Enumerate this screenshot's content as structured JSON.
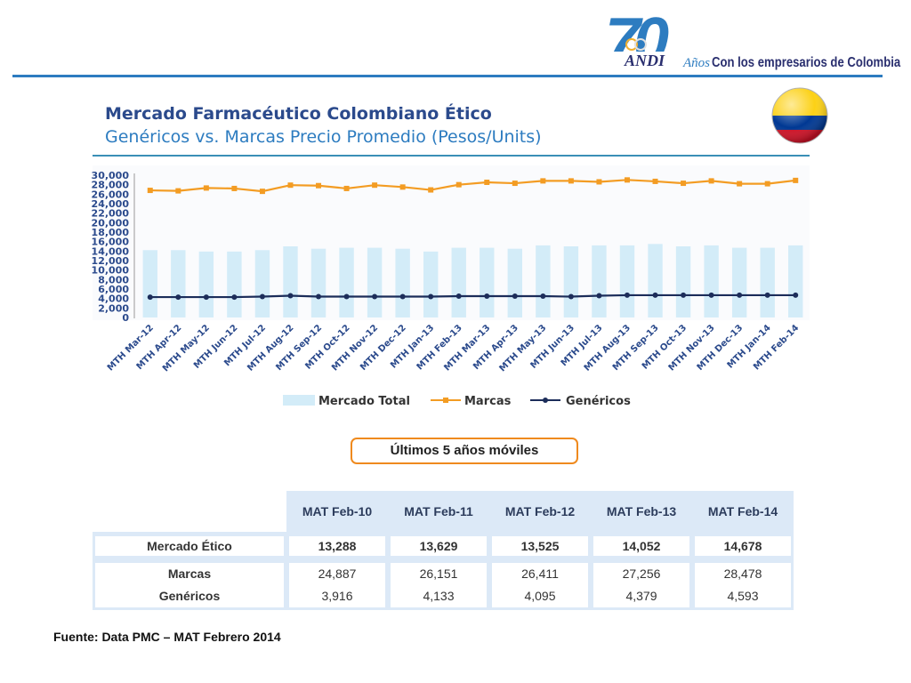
{
  "header": {
    "logo_number": "70",
    "logo_name": "ANDI",
    "anos": "Años",
    "tagline": "Con los empresarios de Colombia"
  },
  "title": "Mercado Farmacéutico Colombiano Ético",
  "subtitle": "Genéricos vs. Marcas Precio Promedio (Pesos/Units)",
  "chart_data": {
    "type": "bar",
    "categories": [
      "MTH Mar-12",
      "MTH Apr-12",
      "MTH May-12",
      "MTH Jun-12",
      "MTH Jul-12",
      "MTH Aug-12",
      "MTH Sep-12",
      "MTH Oct-12",
      "MTH Nov-12",
      "MTH Dec-12",
      "MTH Jan-13",
      "MTH Feb-13",
      "MTH Mar-13",
      "MTH Apr-13",
      "MTH May-13",
      "MTH Jun-13",
      "MTH Jul-13",
      "MTH Aug-13",
      "MTH Sep-13",
      "MTH Oct-13",
      "MTH Nov-13",
      "MTH Dec-13",
      "MTH Jan-14",
      "MTH Feb-14"
    ],
    "series": [
      {
        "name": "Mercado Total",
        "type": "bar",
        "color": "#d3ecf8",
        "values": [
          14200,
          14200,
          13900,
          13900,
          14200,
          15000,
          14500,
          14700,
          14700,
          14500,
          13900,
          14700,
          14700,
          14500,
          15200,
          15000,
          15200,
          15200,
          15500,
          15000,
          15200,
          14700,
          14700,
          15200
        ]
      },
      {
        "name": "Marcas",
        "type": "line",
        "color": "#f39c23",
        "values": [
          26800,
          26700,
          27300,
          27200,
          26600,
          27900,
          27800,
          27200,
          27900,
          27500,
          26900,
          28000,
          28500,
          28300,
          28800,
          28800,
          28600,
          29000,
          28700,
          28300,
          28800,
          28200,
          28200,
          28900
        ]
      },
      {
        "name": "Genéricos",
        "type": "line",
        "color": "#1c2d5a",
        "values": [
          4300,
          4300,
          4300,
          4300,
          4400,
          4600,
          4400,
          4400,
          4400,
          4400,
          4400,
          4500,
          4500,
          4500,
          4500,
          4400,
          4600,
          4700,
          4700,
          4700,
          4700,
          4700,
          4700,
          4700
        ]
      }
    ],
    "yticks": [
      "30,000",
      "28,000",
      "26,000",
      "24,000",
      "22,000",
      "20,000",
      "18,000",
      "16,000",
      "14,000",
      "12,000",
      "10,000",
      "8,000",
      "6,000",
      "4,000",
      "2,000",
      "0"
    ],
    "ylim": [
      0,
      30000
    ],
    "legend_position": "bottom"
  },
  "section_label": "Últimos 5 años móviles",
  "table": {
    "columns": [
      "MAT Feb-10",
      "MAT Feb-11",
      "MAT Feb-12",
      "MAT Feb-13",
      "MAT Feb-14"
    ],
    "rows": [
      {
        "label": "Mercado Ético",
        "values": [
          "13,288",
          "13,629",
          "13,525",
          "14,052",
          "14,678"
        ]
      },
      {
        "label": "Marcas",
        "values": [
          "24,887",
          "26,151",
          "26,411",
          "27,256",
          "28,478"
        ]
      },
      {
        "label": "Genéricos",
        "values": [
          "3,916",
          "4,133",
          "4,095",
          "4,379",
          "4,593"
        ]
      }
    ]
  },
  "source": "Fuente: Data PMC – MAT Febrero 2014",
  "colors": {
    "accent": "#2d7cc0",
    "title": "#2b4a8c",
    "orange": "#ef8a1e",
    "navy": "#1c2d5a",
    "bar": "#d3ecf8"
  }
}
